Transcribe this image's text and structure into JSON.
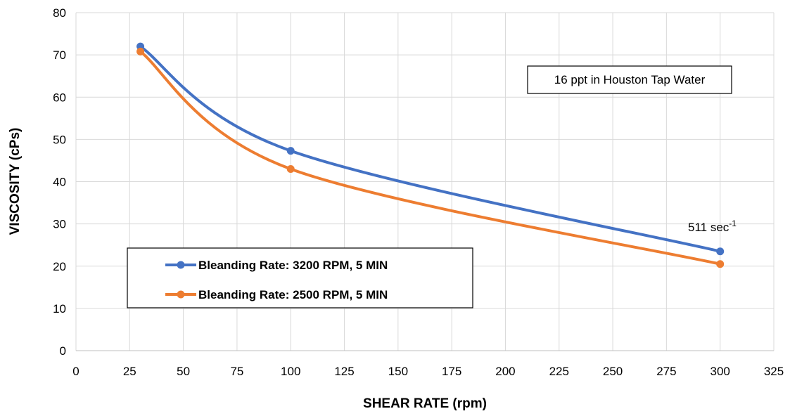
{
  "chart_data": {
    "type": "line",
    "title": "",
    "xlabel": "SHEAR RATE (rpm)",
    "ylabel": "VISCOSITY (cPs)",
    "xlim": [
      0,
      325
    ],
    "ylim": [
      0,
      80
    ],
    "xticks": [
      0,
      25,
      50,
      75,
      100,
      125,
      150,
      175,
      200,
      225,
      250,
      275,
      300,
      325
    ],
    "yticks": [
      0,
      10,
      20,
      30,
      40,
      50,
      60,
      70,
      80
    ],
    "grid": "vertical and horizontal",
    "legend_placement": "lower-left",
    "series": [
      {
        "name": "Bleanding Rate: 3200 RPM, 5 MIN",
        "color": "#4472C4",
        "x": [
          30,
          100,
          300
        ],
        "y": [
          72,
          47.3,
          23.5
        ]
      },
      {
        "name": "Bleanding Rate: 2500 RPM, 5 MIN",
        "color": "#ED7D31",
        "x": [
          30,
          100,
          300
        ],
        "y": [
          70.8,
          43,
          20.5
        ]
      }
    ],
    "annotations": {
      "note_box": "16 ppt in Houston Tap Water",
      "point_label_base": "511 sec",
      "point_label_exp": "-1"
    }
  }
}
